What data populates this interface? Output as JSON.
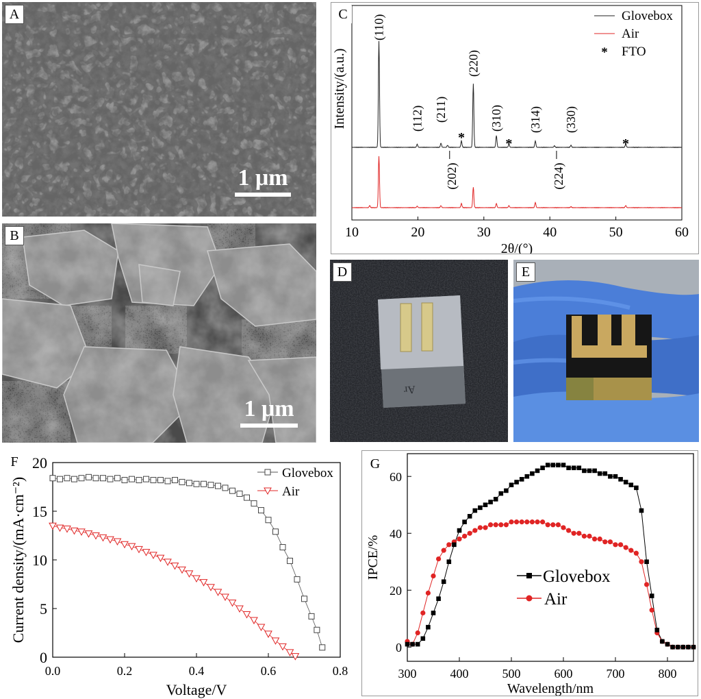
{
  "panels": {
    "A": {
      "label": "A",
      "scale": "1 μm"
    },
    "B": {
      "label": "B",
      "scale": "1 μm"
    },
    "C": {
      "label": "C"
    },
    "D": {
      "label": "D"
    },
    "E": {
      "label": "E"
    },
    "F": {
      "label": "F"
    },
    "G": {
      "label": "G"
    }
  },
  "colors": {
    "glovebox": "#222222",
    "air": "#e02424"
  },
  "chart_data": [
    {
      "id": "C",
      "type": "line",
      "xlabel": "2θ/(°)",
      "ylabel": "Intensity/(a.u.)",
      "xlim": [
        10,
        60
      ],
      "xticks": [
        10,
        20,
        30,
        40,
        50,
        60
      ],
      "legend": [
        "Glovebox",
        "Air",
        "FTO"
      ],
      "legend_position": "top-right",
      "fto_marker": "*",
      "series": [
        {
          "name": "Glovebox",
          "peaks": [
            [
              14.1,
              100
            ],
            [
              19.9,
              3
            ],
            [
              23.5,
              4
            ],
            [
              24.5,
              2
            ],
            [
              26.6,
              6
            ],
            [
              28.4,
              60
            ],
            [
              31.9,
              11
            ],
            [
              33.8,
              3
            ],
            [
              37.8,
              6
            ],
            [
              40.7,
              1.5
            ],
            [
              43.2,
              2
            ],
            [
              51.5,
              3
            ]
          ]
        },
        {
          "name": "Air",
          "peaks": [
            [
              12.7,
              2
            ],
            [
              14.1,
              50
            ],
            [
              19.9,
              1.5
            ],
            [
              23.5,
              2
            ],
            [
              26.6,
              4
            ],
            [
              28.4,
              20
            ],
            [
              31.9,
              4
            ],
            [
              33.8,
              2
            ],
            [
              37.8,
              5
            ],
            [
              43.2,
              1
            ],
            [
              51.5,
              2
            ]
          ]
        }
      ],
      "peak_labels": [
        {
          "text": "(110)",
          "x": 14.1
        },
        {
          "text": "(112)",
          "x": 19.9
        },
        {
          "text": "(211)",
          "x": 23.5
        },
        {
          "text": "(202)",
          "x": 24.5
        },
        {
          "text": "(220)",
          "x": 28.4
        },
        {
          "text": "(310)",
          "x": 31.9
        },
        {
          "text": "(314)",
          "x": 37.8
        },
        {
          "text": "(224)",
          "x": 40.7
        },
        {
          "text": "(330)",
          "x": 43.2
        }
      ],
      "fto_peaks": [
        26.6,
        33.8,
        51.5
      ]
    },
    {
      "id": "F",
      "type": "scatter",
      "xlabel": "Voltage/V",
      "ylabel": "Current density/(mA·cm⁻²)",
      "xlim": [
        0,
        0.8
      ],
      "ylim": [
        0,
        20
      ],
      "xticks": [
        0.0,
        0.2,
        0.4,
        0.6,
        0.8
      ],
      "yticks": [
        0,
        5,
        10,
        15,
        20
      ],
      "legend_position": "top-right",
      "series": [
        {
          "name": "Glovebox",
          "marker": "square",
          "x": [
            0.0,
            0.02,
            0.04,
            0.06,
            0.08,
            0.1,
            0.12,
            0.14,
            0.16,
            0.18,
            0.2,
            0.22,
            0.24,
            0.26,
            0.28,
            0.3,
            0.32,
            0.34,
            0.36,
            0.38,
            0.4,
            0.42,
            0.44,
            0.46,
            0.48,
            0.5,
            0.52,
            0.54,
            0.56,
            0.58,
            0.6,
            0.62,
            0.64,
            0.66,
            0.68,
            0.7,
            0.72,
            0.735,
            0.75
          ],
          "y": [
            18.4,
            18.3,
            18.4,
            18.3,
            18.4,
            18.5,
            18.4,
            18.4,
            18.3,
            18.4,
            18.2,
            18.3,
            18.2,
            18.3,
            18.2,
            18.2,
            18.1,
            18.2,
            18.0,
            17.9,
            17.8,
            17.8,
            17.7,
            17.6,
            17.4,
            17.1,
            16.8,
            16.4,
            15.8,
            15.1,
            14.1,
            12.9,
            11.3,
            9.9,
            8.0,
            6.0,
            4.2,
            2.8,
            1.0
          ]
        },
        {
          "name": "Air",
          "marker": "triangle-down",
          "x": [
            0.0,
            0.02,
            0.04,
            0.06,
            0.08,
            0.1,
            0.12,
            0.14,
            0.16,
            0.18,
            0.2,
            0.22,
            0.24,
            0.26,
            0.28,
            0.3,
            0.32,
            0.34,
            0.36,
            0.38,
            0.4,
            0.42,
            0.44,
            0.46,
            0.48,
            0.5,
            0.52,
            0.54,
            0.56,
            0.58,
            0.6,
            0.62,
            0.64,
            0.66,
            0.675
          ],
          "y": [
            13.5,
            13.3,
            13.2,
            13.0,
            12.9,
            12.7,
            12.5,
            12.3,
            12.1,
            11.9,
            11.6,
            11.4,
            11.1,
            10.8,
            10.5,
            10.2,
            9.8,
            9.4,
            9.0,
            8.6,
            8.1,
            7.7,
            7.2,
            6.7,
            6.2,
            5.6,
            5.0,
            4.4,
            3.8,
            3.1,
            2.4,
            1.7,
            1.1,
            0.5,
            0.1
          ]
        }
      ]
    },
    {
      "id": "G",
      "type": "line",
      "xlabel": "Wavelength/nm",
      "ylabel": "IPCE/%",
      "xlim": [
        300,
        850
      ],
      "ylim": [
        -5,
        68
      ],
      "xticks": [
        300,
        400,
        500,
        600,
        700,
        800
      ],
      "yticks": [
        0,
        20,
        40,
        60
      ],
      "legend_position": "center",
      "series": [
        {
          "name": "Glovebox",
          "marker": "square",
          "x": [
            300,
            310,
            320,
            330,
            340,
            350,
            360,
            370,
            380,
            390,
            400,
            410,
            420,
            430,
            440,
            450,
            460,
            470,
            480,
            490,
            500,
            510,
            520,
            530,
            540,
            550,
            560,
            570,
            580,
            590,
            600,
            610,
            620,
            630,
            640,
            650,
            660,
            670,
            680,
            690,
            700,
            710,
            720,
            730,
            740,
            750,
            760,
            770,
            780,
            790,
            800,
            810,
            820,
            830,
            840,
            850
          ],
          "y": [
            1,
            1,
            1,
            3,
            7,
            12,
            17,
            23,
            30,
            36,
            41,
            44,
            46,
            48,
            49,
            50,
            51,
            52,
            54,
            55,
            57,
            58,
            59,
            60,
            61,
            62,
            63,
            64,
            64,
            64,
            64,
            63,
            63,
            63,
            62,
            62,
            62,
            61,
            61,
            60,
            60,
            59,
            58,
            57,
            56,
            48,
            30,
            18,
            6,
            2,
            1,
            0,
            0,
            0,
            0,
            0
          ]
        },
        {
          "name": "Air",
          "marker": "circle",
          "x": [
            300,
            310,
            320,
            330,
            340,
            350,
            360,
            370,
            380,
            390,
            400,
            410,
            420,
            430,
            440,
            450,
            460,
            470,
            480,
            490,
            500,
            510,
            520,
            530,
            540,
            550,
            560,
            570,
            580,
            590,
            600,
            610,
            620,
            630,
            640,
            650,
            660,
            670,
            680,
            690,
            700,
            710,
            720,
            730,
            740,
            750,
            760,
            770,
            780,
            790,
            800,
            810,
            820,
            830,
            840,
            850
          ],
          "y": [
            2,
            1,
            5,
            12,
            19,
            25,
            31,
            34,
            36,
            37,
            38,
            39,
            40,
            41,
            42,
            42,
            43,
            43,
            43,
            43,
            44,
            44,
            44,
            44,
            44,
            44,
            44,
            43,
            43,
            43,
            42,
            41,
            40,
            40,
            39,
            39,
            38,
            38,
            37,
            37,
            36,
            36,
            35,
            34,
            33,
            30,
            22,
            13,
            5,
            2,
            1,
            0,
            0,
            0,
            0,
            0
          ]
        }
      ]
    }
  ]
}
